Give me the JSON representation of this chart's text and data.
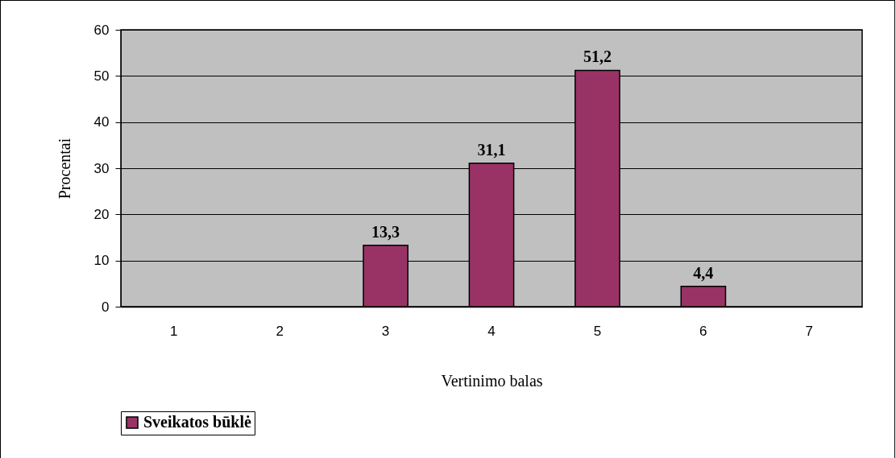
{
  "chart_data": {
    "type": "bar",
    "xlabel": "Vertinimo balas",
    "ylabel": "Procentai",
    "categories": [
      "1",
      "2",
      "3",
      "4",
      "5",
      "6",
      "7"
    ],
    "series": [
      {
        "name": "Sveikatos būklė",
        "color": "#993366",
        "values": [
          null,
          null,
          13.3,
          31.1,
          51.2,
          4.4,
          null
        ],
        "value_labels": [
          null,
          null,
          "13,3",
          "31,1",
          "51,2",
          "4,4",
          null
        ]
      }
    ],
    "ylim": [
      0,
      60
    ],
    "yticks": [
      0,
      10,
      20,
      30,
      40,
      50,
      60
    ],
    "grid": "y",
    "legend": "bottom"
  }
}
